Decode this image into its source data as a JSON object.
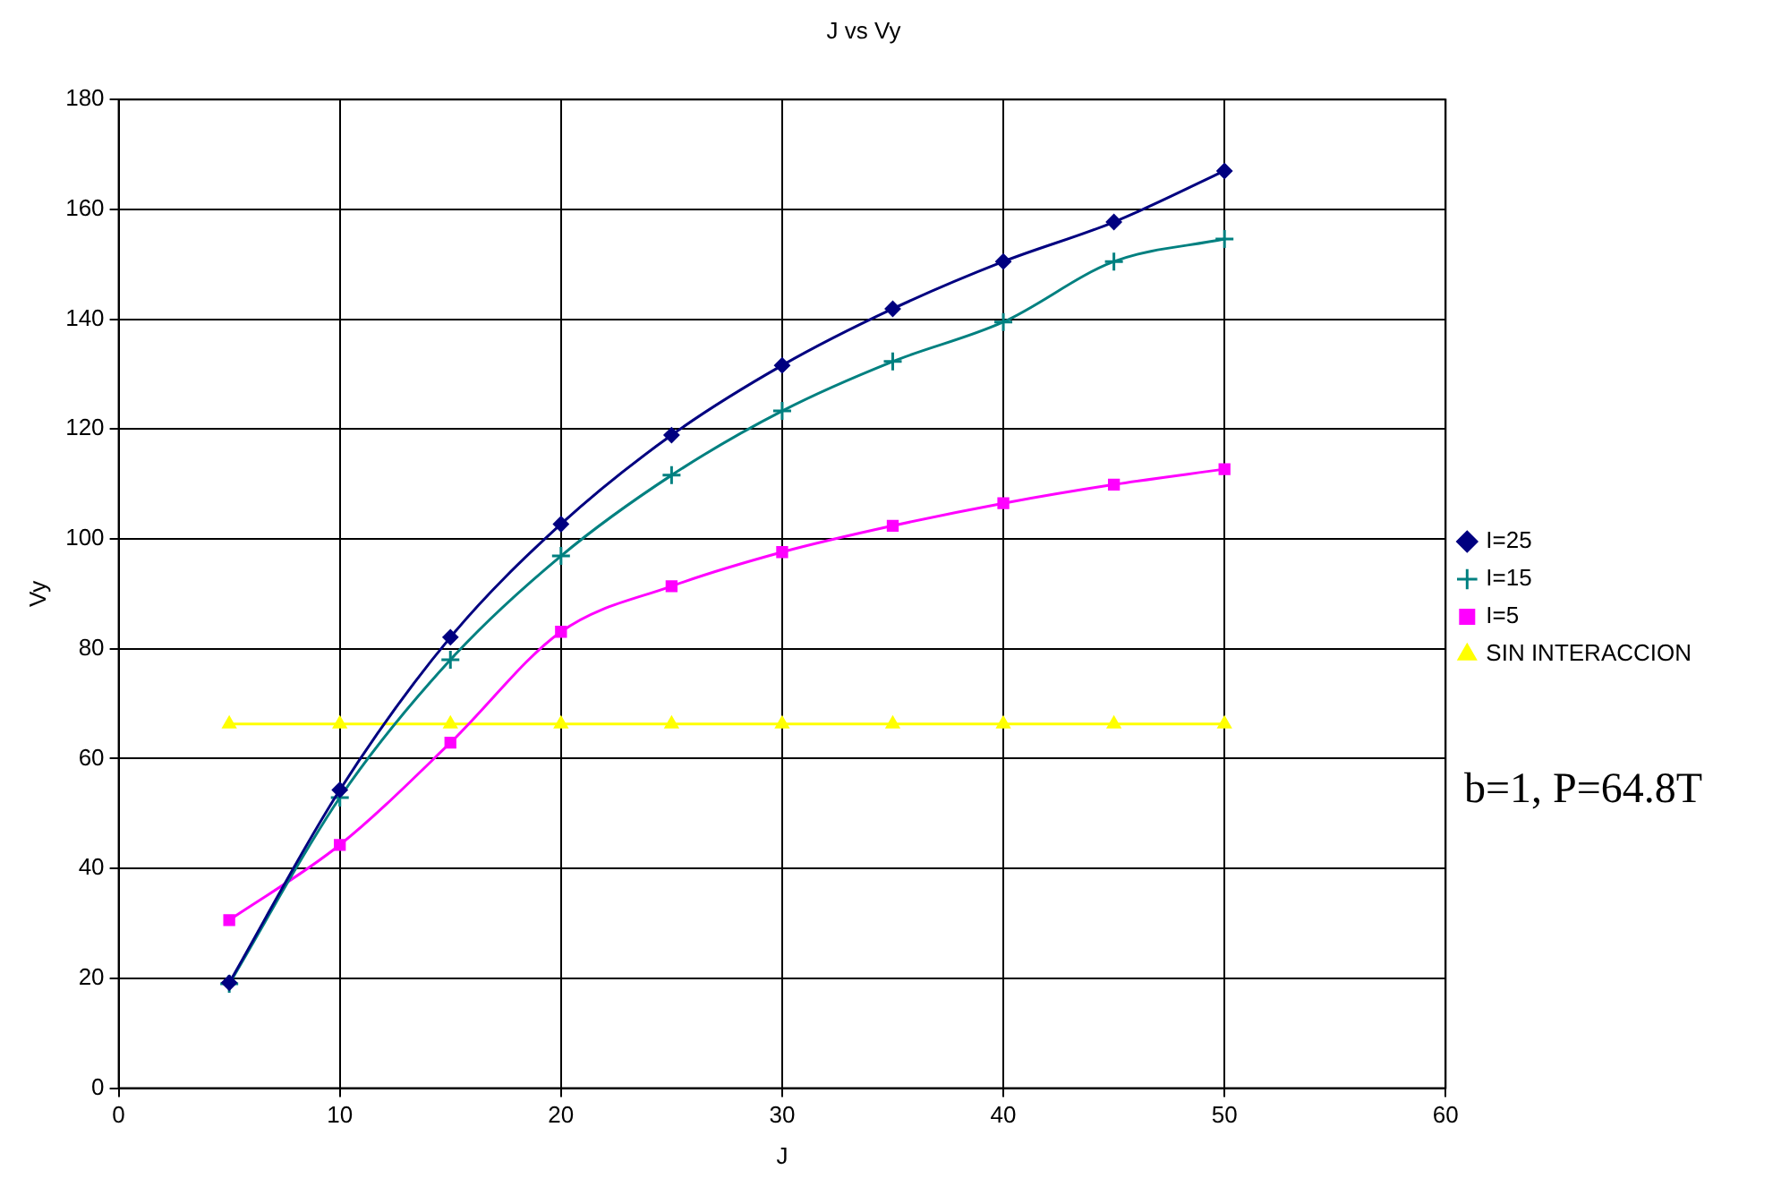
{
  "chart_data": {
    "type": "line",
    "title": "J vs Vy",
    "xlabel": "J",
    "ylabel": "Vy",
    "x": [
      5,
      10,
      15,
      20,
      25,
      30,
      35,
      40,
      45,
      50
    ],
    "series": [
      {
        "name": "I=25",
        "color": "#000080",
        "marker": "diamond",
        "values": [
          19.2,
          54.3,
          82.1,
          102.7,
          118.9,
          131.6,
          141.9,
          150.5,
          157.7,
          167
        ]
      },
      {
        "name": "I=15",
        "color": "#008080",
        "marker": "cross",
        "values": [
          19,
          52.9,
          78,
          96.9,
          111.6,
          123.3,
          132.3,
          139.5,
          150.5,
          154.6
        ]
      },
      {
        "name": "I=5",
        "color": "#ff00ff",
        "marker": "square",
        "values": [
          30.6,
          44.3,
          62.9,
          83.1,
          91.4,
          97.6,
          102.4,
          106.5,
          109.9,
          112.7
        ]
      },
      {
        "name": "SIN INTERACCION",
        "color": "#ffff00",
        "marker": "triangle",
        "values": [
          66.3,
          66.3,
          66.3,
          66.3,
          66.3,
          66.3,
          66.3,
          66.3,
          66.3,
          66.3
        ]
      }
    ],
    "xlim": [
      0,
      60
    ],
    "xticks": [
      0,
      10,
      20,
      30,
      40,
      50,
      60
    ],
    "ylim": [
      0,
      180
    ],
    "yticks": [
      0,
      20,
      40,
      60,
      80,
      100,
      120,
      140,
      160,
      180
    ],
    "grid": true,
    "legend": "right",
    "line_style": "solid",
    "annotations": [
      "b=1, P=64.8T"
    ]
  }
}
